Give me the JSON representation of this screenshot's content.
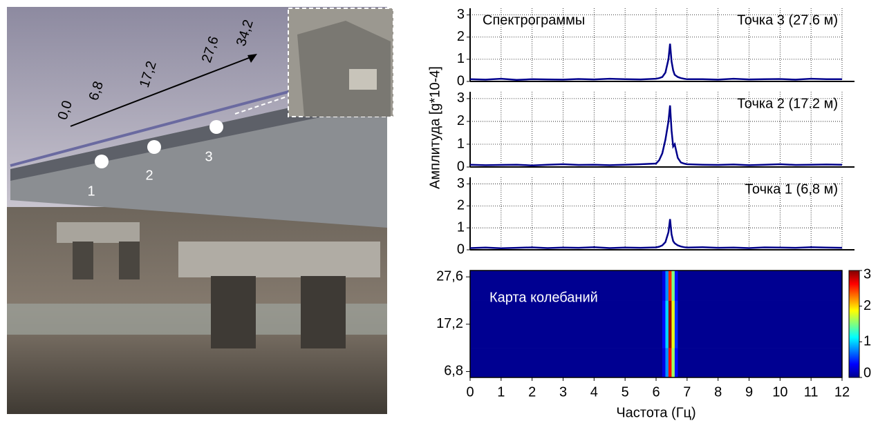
{
  "photo": {
    "distance_labels": [
      "0,0",
      "6,8",
      "17,2",
      "27,6",
      "34,2"
    ],
    "point_labels": [
      "1",
      "2",
      "3"
    ]
  },
  "chart_data": [
    {
      "type": "line",
      "title": "Точка 3 (27.6 м)",
      "annotation": "Спектрограммы",
      "color": "#00008b",
      "x": [
        0,
        0.5,
        1,
        1.5,
        2,
        2.5,
        3,
        3.5,
        4,
        4.5,
        5,
        5.5,
        6,
        6.1,
        6.2,
        6.3,
        6.4,
        6.45,
        6.5,
        6.55,
        6.6,
        6.7,
        6.8,
        6.9,
        7,
        7.5,
        8,
        8.5,
        9,
        9.5,
        10,
        10.5,
        11,
        11.5,
        12
      ],
      "values": [
        0.1,
        0.08,
        0.12,
        0.07,
        0.1,
        0.09,
        0.08,
        0.11,
        0.09,
        0.12,
        0.1,
        0.09,
        0.12,
        0.15,
        0.2,
        0.4,
        1.0,
        1.7,
        0.9,
        0.5,
        0.3,
        0.2,
        0.15,
        0.12,
        0.1,
        0.1,
        0.08,
        0.12,
        0.09,
        0.1,
        0.11,
        0.08,
        0.12,
        0.1,
        0.1
      ],
      "xlim": [
        0,
        12
      ],
      "ylim": [
        0,
        3.3
      ],
      "xticks": [
        0,
        1,
        2,
        3,
        4,
        5,
        6,
        7,
        8,
        9,
        10,
        11,
        12
      ],
      "yticks": [
        0,
        1,
        2,
        3
      ],
      "grid": true
    },
    {
      "type": "line",
      "title": "Точка 2 (17.2 м)",
      "ylabel": "Амплитуда [g*10-4]",
      "color": "#00008b",
      "x": [
        0,
        0.5,
        1,
        1.5,
        2,
        2.5,
        3,
        3.5,
        4,
        4.5,
        5,
        5.5,
        6,
        6.1,
        6.2,
        6.3,
        6.4,
        6.45,
        6.5,
        6.55,
        6.6,
        6.7,
        6.8,
        6.9,
        7,
        7.5,
        8,
        8.5,
        9,
        9.5,
        10,
        10.5,
        11,
        11.5,
        12
      ],
      "values": [
        0.1,
        0.08,
        0.09,
        0.1,
        0.07,
        0.1,
        0.12,
        0.09,
        0.1,
        0.08,
        0.1,
        0.12,
        0.15,
        0.3,
        0.6,
        1.2,
        2.0,
        2.7,
        1.6,
        0.9,
        1.0,
        0.4,
        0.2,
        0.15,
        0.12,
        0.1,
        0.09,
        0.11,
        0.08,
        0.1,
        0.12,
        0.09,
        0.1,
        0.11,
        0.1
      ],
      "xlim": [
        0,
        12
      ],
      "ylim": [
        0,
        3.3
      ],
      "xticks": [
        0,
        1,
        2,
        3,
        4,
        5,
        6,
        7,
        8,
        9,
        10,
        11,
        12
      ],
      "yticks": [
        0,
        1,
        2,
        3
      ],
      "grid": true
    },
    {
      "type": "line",
      "title": "Точка 1 (6,8 м)",
      "color": "#00008b",
      "x": [
        0,
        0.5,
        1,
        1.5,
        2,
        2.5,
        3,
        3.5,
        4,
        4.5,
        5,
        5.5,
        6,
        6.1,
        6.2,
        6.3,
        6.4,
        6.45,
        6.5,
        6.55,
        6.6,
        6.7,
        6.8,
        6.9,
        7,
        7.5,
        8,
        8.5,
        9,
        9.5,
        10,
        10.5,
        11,
        11.5,
        12
      ],
      "values": [
        0.08,
        0.1,
        0.07,
        0.09,
        0.11,
        0.08,
        0.1,
        0.09,
        0.12,
        0.08,
        0.1,
        0.09,
        0.11,
        0.14,
        0.2,
        0.35,
        0.8,
        1.4,
        0.7,
        0.4,
        0.3,
        0.2,
        0.15,
        0.12,
        0.1,
        0.12,
        0.09,
        0.1,
        0.08,
        0.11,
        0.1,
        0.09,
        0.12,
        0.1,
        0.09
      ],
      "xlim": [
        0,
        12
      ],
      "ylim": [
        0,
        3.3
      ],
      "xticks": [
        0,
        1,
        2,
        3,
        4,
        5,
        6,
        7,
        8,
        9,
        10,
        11,
        12
      ],
      "yticks": [
        0,
        1,
        2,
        3
      ],
      "grid": true
    },
    {
      "type": "heatmap",
      "annotation": "Карта колебаний",
      "xlabel": "Частота (Гц)",
      "x_edges": [
        0,
        6.2,
        6.3,
        6.4,
        6.5,
        6.6,
        6.7,
        12
      ],
      "y_edges": [
        5.5,
        12,
        22.4,
        29
      ],
      "z": [
        [
          0.05,
          0.3,
          0.8,
          2.6,
          1.6,
          0.4,
          0.05
        ],
        [
          0.05,
          0.4,
          1.0,
          2.9,
          1.8,
          0.5,
          0.05
        ],
        [
          0.05,
          0.3,
          0.8,
          2.5,
          1.5,
          0.4,
          0.05
        ]
      ],
      "xlim": [
        0,
        12
      ],
      "ylim": [
        5.5,
        29
      ],
      "xticks": [
        0,
        1,
        2,
        3,
        4,
        5,
        6,
        7,
        8,
        9,
        10,
        11,
        12
      ],
      "yticks": [
        {
          "value": 6.8,
          "label": "6,8"
        },
        {
          "value": 17.2,
          "label": "17,2"
        },
        {
          "value": 27.6,
          "label": "27,6"
        }
      ],
      "clim": [
        0,
        3
      ],
      "cticks": [
        0,
        1,
        2,
        3
      ]
    }
  ]
}
